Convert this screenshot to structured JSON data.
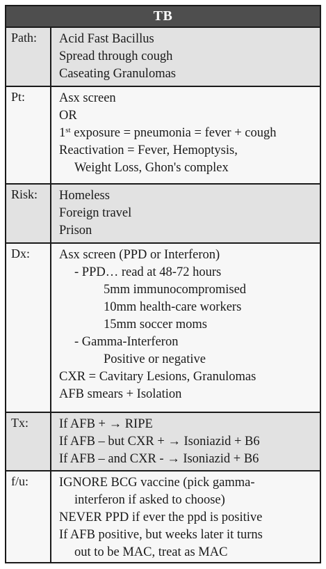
{
  "title": "TB",
  "sections": {
    "path": {
      "label": "Path:",
      "lines": [
        "Acid Fast Bacillus",
        "Spread through cough",
        "Caseating Granulomas"
      ]
    },
    "pt": {
      "label": "Pt:",
      "line1": "Asx screen",
      "line2": "OR",
      "line3_sup": "st",
      "line3_pre": "1",
      "line3_rest": " exposure = pneumonia = fever + cough",
      "line4": "Reactivation = Fever, Hemoptysis,",
      "line5": "Weight Loss, Ghon's complex"
    },
    "risk": {
      "label": "Risk:",
      "lines": [
        "Homeless",
        "Foreign travel",
        "Prison"
      ]
    },
    "dx": {
      "label": "Dx:",
      "lines": [
        "Asx screen (PPD or Interferon)",
        "- PPD… read at 48-72 hours",
        "5mm immunocompromised",
        "10mm health-care workers",
        "15mm soccer moms",
        "- Gamma-Interferon",
        "Positive or negative",
        "CXR = Cavitary Lesions, Granulomas",
        "AFB smears + Isolation"
      ]
    },
    "tx": {
      "label": "Tx:",
      "lines": [
        "If AFB + → RIPE",
        "If AFB – but CXR + → Isoniazid + B6",
        "If AFB – and CXR - → Isoniazid + B6"
      ]
    },
    "fu": {
      "label": "f/u:",
      "lines": [
        "IGNORE BCG vaccine (pick gamma-",
        "interferon if asked to choose)",
        "NEVER PPD if ever the ppd is positive",
        "If AFB positive, but weeks later it turns",
        "out to be MAC, treat as MAC"
      ]
    }
  }
}
